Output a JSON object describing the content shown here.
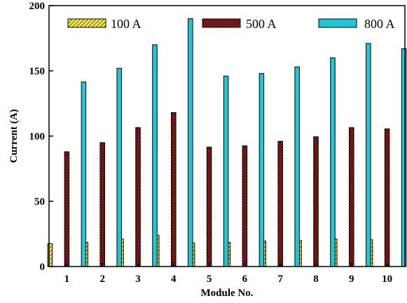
{
  "chart_data": {
    "type": "bar",
    "title": "",
    "xlabel": "Module No.",
    "ylabel": "Current (A)",
    "categories": [
      "1",
      "2",
      "3",
      "4",
      "5",
      "6",
      "7",
      "8",
      "9",
      "10"
    ],
    "ylim": [
      0,
      200
    ],
    "yticks": [
      0,
      50,
      100,
      150,
      200
    ],
    "grid": false,
    "legend": "top",
    "series": [
      {
        "name": "100 A",
        "color": "#f2ea3c",
        "pattern": "diagonal-hatch",
        "values": [
          17.5,
          18.5,
          21,
          24,
          18,
          18.5,
          19.5,
          20,
          21,
          20.5
        ]
      },
      {
        "name": "500 A",
        "color": "#e31a1c",
        "pattern": "crosshatch",
        "values": [
          88,
          95,
          106.5,
          118,
          91.5,
          92.5,
          96,
          99.5,
          106.5,
          105.5
        ]
      },
      {
        "name": "800 A",
        "color": "#1fc6d6",
        "pattern": "solid",
        "values": [
          141.5,
          152,
          170,
          190,
          146,
          148,
          153,
          160,
          171,
          167
        ]
      }
    ]
  }
}
